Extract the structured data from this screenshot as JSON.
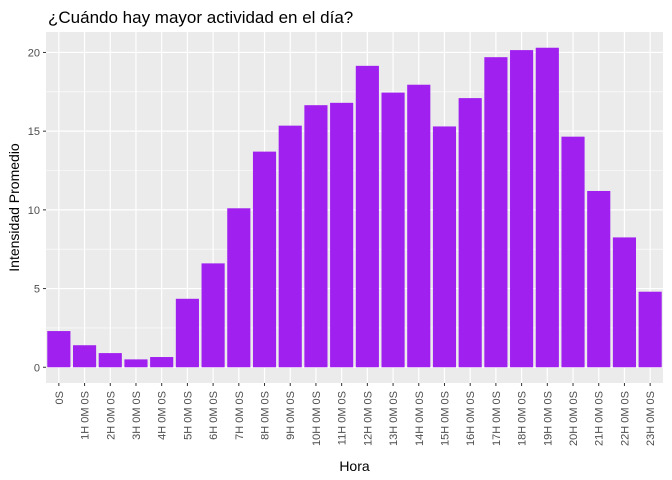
{
  "chart_data": {
    "type": "bar",
    "title": "¿Cuándo hay mayor actividad en el día?",
    "xlabel": "Hora",
    "ylabel": "Intensidad Promedio",
    "categories": [
      "0S",
      "1H 0M 0S",
      "2H 0M 0S",
      "3H 0M 0S",
      "4H 0M 0S",
      "5H 0M 0S",
      "6H 0M 0S",
      "7H 0M 0S",
      "8H 0M 0S",
      "9H 0M 0S",
      "10H 0M 0S",
      "11H 0M 0S",
      "12H 0M 0S",
      "13H 0M 0S",
      "14H 0M 0S",
      "15H 0M 0S",
      "16H 0M 0S",
      "17H 0M 0S",
      "18H 0M 0S",
      "19H 0M 0S",
      "20H 0M 0S",
      "21H 0M 0S",
      "22H 0M 0S",
      "23H 0M 0S"
    ],
    "values": [
      2.3,
      1.4,
      0.9,
      0.5,
      0.65,
      4.35,
      6.6,
      10.1,
      13.7,
      15.35,
      16.65,
      16.8,
      19.15,
      17.45,
      17.95,
      15.3,
      17.1,
      19.7,
      20.15,
      20.3,
      14.65,
      11.2,
      8.25,
      4.8
    ],
    "ylim": [
      -1.0,
      21.3
    ],
    "yticks": [
      0,
      5,
      10,
      15,
      20
    ],
    "bar_color": "#A020F0",
    "panel_background": "#EBEBEB",
    "grid_color": "#FFFFFF",
    "grid": true,
    "legend": "none"
  }
}
